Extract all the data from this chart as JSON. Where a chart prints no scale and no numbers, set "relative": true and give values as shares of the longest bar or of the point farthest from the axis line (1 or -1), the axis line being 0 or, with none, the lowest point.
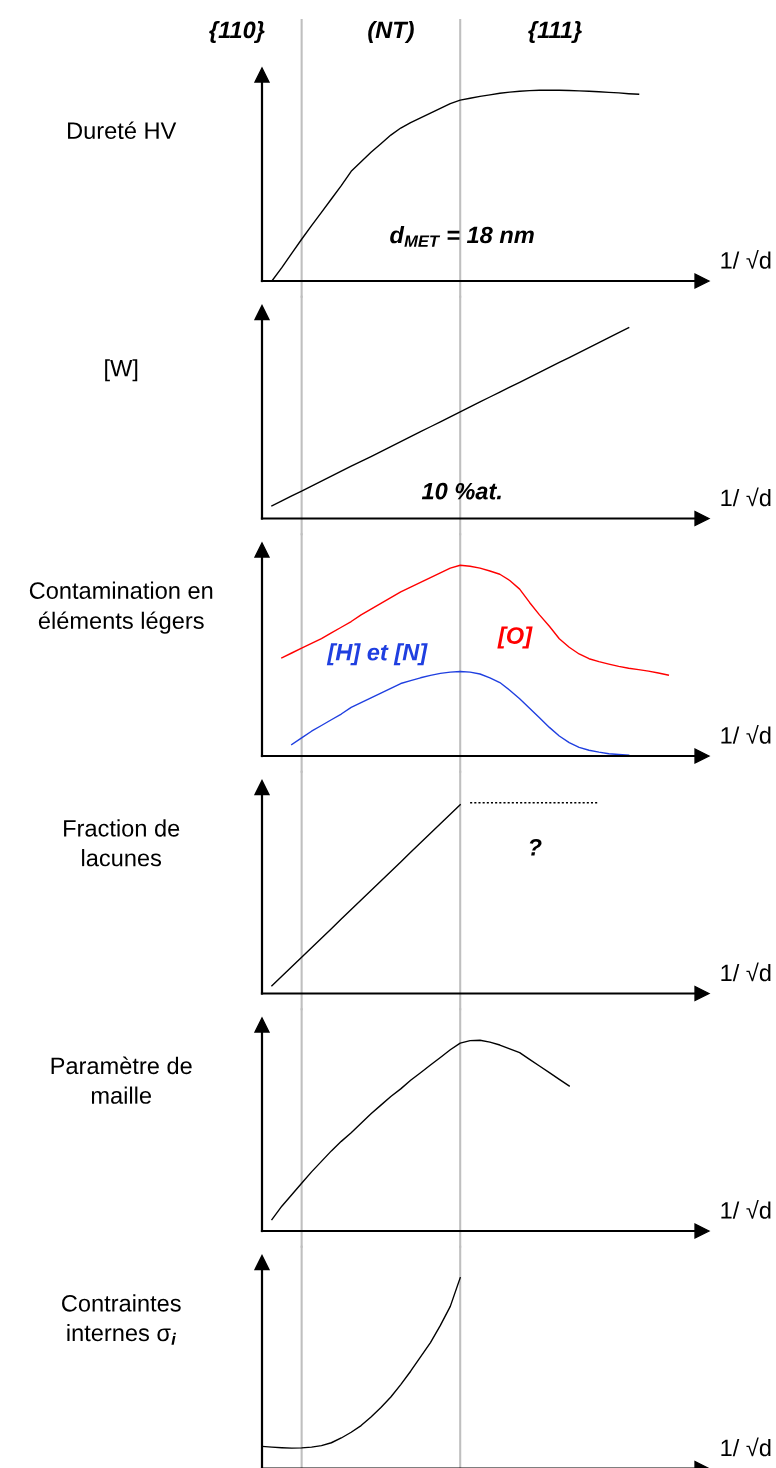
{
  "chart_data": [
    {
      "type": "line",
      "ylabel": "Dureté HV",
      "xlabel": "1/ √d",
      "relative": true,
      "line_style": "solid",
      "categories": [
        null,
        null,
        null,
        null,
        null,
        null,
        null,
        null,
        null,
        null,
        null,
        null,
        null,
        null,
        null,
        null,
        null,
        null,
        null,
        null,
        null,
        null,
        null,
        null,
        null,
        null,
        null,
        null,
        null,
        null,
        null,
        null,
        null,
        null,
        null,
        null,
        null,
        null,
        null,
        null,
        null,
        null
      ],
      "series": [
        {
          "color": "#000000",
          "values": [
            null,
            0.0,
            0.07,
            0.145,
            0.219,
            0.29,
            0.36,
            0.43,
            0.5,
            0.575,
            0.625,
            0.675,
            0.72,
            0.765,
            0.802,
            0.83,
            0.855,
            0.88,
            0.905,
            0.93,
            0.948,
            0.958,
            0.968,
            0.976,
            0.984,
            0.99,
            0.995,
            0.998,
            1.0,
            1.0,
            1.0,
            0.999,
            0.997,
            0.995,
            0.992,
            0.989,
            0.986,
            0.982,
            0.979,
            null,
            null,
            null
          ]
        }
      ],
      "annotations": [
        "{110}",
        "(NT)",
        "{111}",
        "d$_{MET}$ = 18 nm"
      ]
    },
    {
      "type": "line",
      "ylabel": "[W]",
      "xlabel": "1/ √d",
      "relative": true,
      "line_style": "solid",
      "categories": [
        null,
        null,
        null,
        null,
        null,
        null,
        null,
        null,
        null,
        null,
        null,
        null,
        null,
        null,
        null,
        null,
        null,
        null,
        null,
        null,
        null,
        null,
        null,
        null,
        null,
        null,
        null,
        null,
        null,
        null,
        null,
        null,
        null,
        null,
        null,
        null,
        null,
        null,
        null,
        null,
        null,
        null
      ],
      "series": [
        {
          "color": "#000000",
          "values": [
            null,
            0.066,
            0.092,
            0.118,
            0.144,
            0.17,
            0.196,
            0.222,
            0.248,
            0.274,
            0.299,
            0.325,
            0.351,
            0.377,
            0.403,
            0.429,
            0.455,
            0.481,
            0.507,
            0.533,
            0.559,
            0.585,
            0.611,
            0.637,
            0.663,
            0.689,
            0.714,
            0.74,
            0.766,
            0.792,
            0.818,
            0.844,
            0.87,
            0.896,
            0.922,
            0.948,
            0.974,
            1.0,
            null,
            null,
            null,
            null
          ]
        }
      ],
      "annotations": [
        "10 %at."
      ]
    },
    {
      "type": "line",
      "ylabel": "Contamination en\néléments légers",
      "xlabel": "1/ √d",
      "relative": true,
      "line_style": "solid",
      "categories": [
        null,
        null,
        null,
        null,
        null,
        null,
        null,
        null,
        null,
        null,
        null,
        null,
        null,
        null,
        null,
        null,
        null,
        null,
        null,
        null,
        null,
        null,
        null,
        null,
        null,
        null,
        null,
        null,
        null,
        null,
        null,
        null,
        null,
        null,
        null,
        null,
        null,
        null,
        null,
        null,
        null,
        null
      ],
      "series": [
        {
          "name": "[O]",
          "color": "#ff0000",
          "values": [
            null,
            null,
            0.515,
            0.54,
            0.565,
            0.59,
            0.615,
            0.645,
            0.675,
            0.705,
            0.74,
            0.77,
            0.8,
            0.83,
            0.86,
            0.885,
            0.91,
            0.935,
            0.96,
            0.985,
            1.0,
            0.995,
            0.985,
            0.97,
            0.953,
            0.92,
            0.875,
            0.805,
            0.74,
            0.68,
            0.615,
            0.57,
            0.535,
            0.51,
            0.495,
            0.482,
            0.47,
            0.46,
            0.453,
            0.445,
            0.435,
            0.424
          ]
        },
        {
          "name": "[H] et [N]",
          "color": "#1f3fe0",
          "values": [
            null,
            null,
            null,
            0.06,
            0.095,
            0.13,
            0.16,
            0.19,
            0.22,
            0.255,
            0.28,
            0.305,
            0.33,
            0.355,
            0.38,
            0.395,
            0.41,
            0.423,
            0.433,
            0.44,
            0.443,
            0.44,
            0.43,
            0.41,
            0.385,
            0.345,
            0.3,
            0.25,
            0.2,
            0.15,
            0.105,
            0.07,
            0.045,
            0.03,
            0.02,
            0.012,
            0.008,
            0.005,
            null,
            null,
            null,
            null
          ]
        }
      ]
    },
    {
      "type": "line",
      "ylabel": "Fraction de\nlacunes",
      "xlabel": "1/ √d",
      "relative": true,
      "categories": [
        null,
        null,
        null,
        null,
        null,
        null,
        null,
        null,
        null,
        null,
        null,
        null,
        null,
        null,
        null,
        null,
        null,
        null,
        null,
        null,
        null,
        null,
        null,
        null,
        null,
        null,
        null,
        null,
        null,
        null,
        null,
        null,
        null,
        null,
        null,
        null,
        null,
        null,
        null,
        null,
        null,
        null
      ],
      "series": [
        {
          "color": "#000000",
          "line_style": "solid",
          "values": [
            null,
            0.04,
            0.09,
            0.14,
            0.19,
            0.24,
            0.29,
            0.34,
            0.39,
            0.44,
            0.49,
            0.54,
            0.59,
            0.64,
            0.69,
            0.74,
            0.79,
            0.84,
            0.89,
            0.94,
            0.99,
            null,
            null,
            null,
            null,
            null,
            null,
            null,
            null,
            null,
            null,
            null,
            null,
            null,
            null,
            null,
            null,
            null,
            null,
            null,
            null,
            null
          ]
        },
        {
          "color": "#000000",
          "line_style": "dotted",
          "values": [
            null,
            null,
            null,
            null,
            null,
            null,
            null,
            null,
            null,
            null,
            null,
            null,
            null,
            null,
            null,
            null,
            null,
            null,
            null,
            null,
            null,
            1.0,
            1.0,
            1.0,
            1.0,
            1.0,
            1.0,
            1.0,
            1.0,
            1.0,
            1.0,
            1.0,
            1.0,
            1.0,
            1.0,
            null,
            null,
            null,
            null,
            null,
            null,
            null
          ]
        }
      ],
      "annotations": [
        "?"
      ]
    },
    {
      "type": "line",
      "ylabel": "Paramètre de\nmaille",
      "xlabel": "1/ √d",
      "relative": true,
      "line_style": "solid",
      "categories": [
        null,
        null,
        null,
        null,
        null,
        null,
        null,
        null,
        null,
        null,
        null,
        null,
        null,
        null,
        null,
        null,
        null,
        null,
        null,
        null,
        null,
        null,
        null,
        null,
        null,
        null,
        null,
        null,
        null,
        null,
        null,
        null,
        null,
        null,
        null,
        null,
        null,
        null,
        null,
        null,
        null,
        null
      ],
      "series": [
        {
          "color": "#000000",
          "values": [
            null,
            0.06,
            0.13,
            0.19,
            0.25,
            0.31,
            0.365,
            0.42,
            0.47,
            0.515,
            0.565,
            0.615,
            0.66,
            0.705,
            0.745,
            0.79,
            0.83,
            0.87,
            0.91,
            0.95,
            0.985,
            0.998,
            1.0,
            0.99,
            0.975,
            0.955,
            0.935,
            0.9,
            0.865,
            0.83,
            0.795,
            0.76,
            null,
            null,
            null,
            null,
            null,
            null,
            null,
            null,
            null,
            null
          ]
        }
      ]
    },
    {
      "type": "line",
      "ylabel": "Contraintes\ninternes σ$_{i}$",
      "xlabel": "1/ √d",
      "relative": true,
      "line_style": "solid",
      "categories": [
        null,
        null,
        null,
        null,
        null,
        null,
        null,
        null,
        null,
        null,
        null,
        null,
        null,
        null,
        null,
        null,
        null,
        null,
        null,
        null,
        null,
        null,
        null,
        null,
        null,
        null,
        null,
        null,
        null,
        null,
        null,
        null,
        null,
        null,
        null,
        null,
        null,
        null,
        null,
        null,
        null,
        null
      ],
      "series": [
        {
          "color": "#000000",
          "values": [
            0.116,
            0.112,
            0.109,
            0.107,
            0.108,
            0.112,
            0.12,
            0.135,
            0.16,
            0.19,
            0.225,
            0.27,
            0.32,
            0.375,
            0.44,
            0.51,
            0.585,
            0.66,
            0.75,
            0.85,
            1.0,
            null,
            null,
            null,
            null,
            null,
            null,
            null,
            null,
            null,
            null,
            null,
            null,
            null,
            null,
            null,
            null,
            null,
            null,
            null,
            null,
            null
          ]
        }
      ]
    }
  ]
}
